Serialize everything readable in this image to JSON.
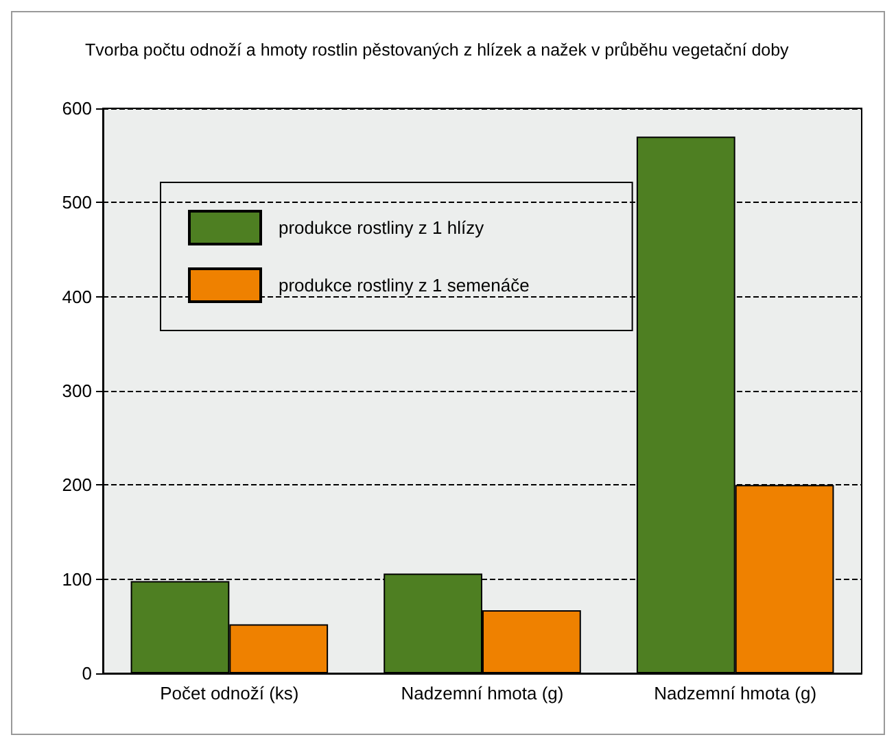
{
  "chart_data": {
    "type": "bar",
    "title": "Tvorba počtu odnoží a hmoty rostlin pěstovaných z hlízek a nažek v průběhu vegetační doby",
    "categories": [
      "Počet odnoží (ks)",
      "Nadzemní hmota (g)",
      "Nadzemní hmota (g)"
    ],
    "series": [
      {
        "name": "produkce rostliny z 1 hlízy",
        "color": "#4e7f22",
        "values": [
          98,
          106,
          570
        ]
      },
      {
        "name": "produkce rostliny z 1 semenáče",
        "color": "#ef8100",
        "values": [
          52,
          67,
          200
        ]
      }
    ],
    "ylim": [
      0,
      600
    ],
    "yticks": [
      0,
      100,
      200,
      300,
      400,
      500,
      600
    ],
    "grid": "y",
    "legend": "top left"
  }
}
